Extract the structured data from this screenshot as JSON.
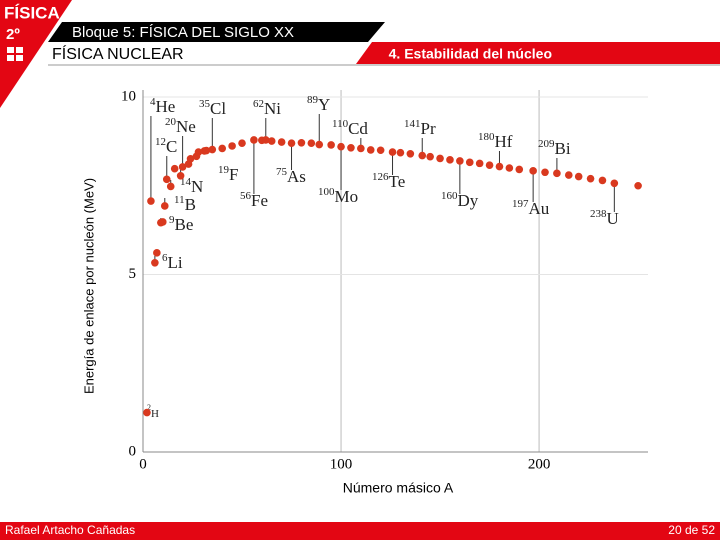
{
  "slide": {
    "subject": "FÍSICA",
    "course": "2º",
    "block": "Bloque 5: FÍSICA DEL SIGLO XX",
    "unit": "FÍSICA NUCLEAR",
    "section": "4. Estabilidad del núcleo",
    "author": "Rafael Artacho Cañadas",
    "page": "20 de 52"
  },
  "chart_data": {
    "type": "scatter",
    "y_label": "Energía de enlace por nucleón (MeV)",
    "x_label": "Número másico A",
    "xlim": [
      0,
      255
    ],
    "ylim": [
      0,
      10
    ],
    "xticks": [
      0,
      100,
      200
    ],
    "yticks": [
      0,
      5,
      10
    ],
    "grid": true,
    "series": [
      {
        "color": "#d9391f",
        "x": [
          2,
          4,
          6,
          7,
          9,
          10,
          11,
          12,
          14,
          16,
          19,
          20,
          23,
          24,
          27,
          28,
          31,
          32,
          35,
          40,
          45,
          50,
          56,
          60,
          62,
          65,
          70,
          75,
          80,
          85,
          89,
          95,
          100,
          105,
          110,
          115,
          120,
          126,
          130,
          135,
          141,
          145,
          150,
          155,
          160,
          165,
          170,
          175,
          180,
          185,
          190,
          197,
          203,
          209,
          215,
          220,
          226,
          232,
          238,
          250
        ],
        "values": [
          1.11,
          7.07,
          5.33,
          5.61,
          6.46,
          6.48,
          6.93,
          7.68,
          7.48,
          7.98,
          7.78,
          8.03,
          8.11,
          8.26,
          8.33,
          8.45,
          8.48,
          8.49,
          8.52,
          8.55,
          8.62,
          8.7,
          8.79,
          8.78,
          8.79,
          8.76,
          8.73,
          8.7,
          8.71,
          8.7,
          8.66,
          8.65,
          8.6,
          8.57,
          8.55,
          8.51,
          8.5,
          8.45,
          8.43,
          8.4,
          8.35,
          8.32,
          8.27,
          8.23,
          8.2,
          8.16,
          8.13,
          8.08,
          8.04,
          8,
          7.96,
          7.92,
          7.88,
          7.85,
          7.8,
          7.76,
          7.7,
          7.65,
          7.57,
          7.5
        ]
      }
    ],
    "annotations": [
      {
        "mass": 4,
        "symbol": "He"
      },
      {
        "mass": 20,
        "symbol": "Ne"
      },
      {
        "mass": 12,
        "symbol": "C"
      },
      {
        "mass": 35,
        "symbol": "Cl"
      },
      {
        "mass": 62,
        "symbol": "Ni"
      },
      {
        "mass": 89,
        "symbol": "Y"
      },
      {
        "mass": 110,
        "symbol": "Cd"
      },
      {
        "mass": 141,
        "symbol": "Pr"
      },
      {
        "mass": 180,
        "symbol": "Hf"
      },
      {
        "mass": 209,
        "symbol": "Bi"
      },
      {
        "mass": 19,
        "symbol": "F"
      },
      {
        "mass": 75,
        "symbol": "As"
      },
      {
        "mass": 126,
        "symbol": "Te"
      },
      {
        "mass": 14,
        "symbol": "N"
      },
      {
        "mass": 56,
        "symbol": "Fe"
      },
      {
        "mass": 100,
        "symbol": "Mo"
      },
      {
        "mass": 160,
        "symbol": "Dy"
      },
      {
        "mass": 11,
        "symbol": "B"
      },
      {
        "mass": 197,
        "symbol": "Au"
      },
      {
        "mass": 238,
        "symbol": "U"
      },
      {
        "mass": 9,
        "symbol": "Be"
      },
      {
        "mass": 6,
        "symbol": "Li"
      },
      {
        "mass": 2,
        "symbol": "H"
      }
    ]
  }
}
